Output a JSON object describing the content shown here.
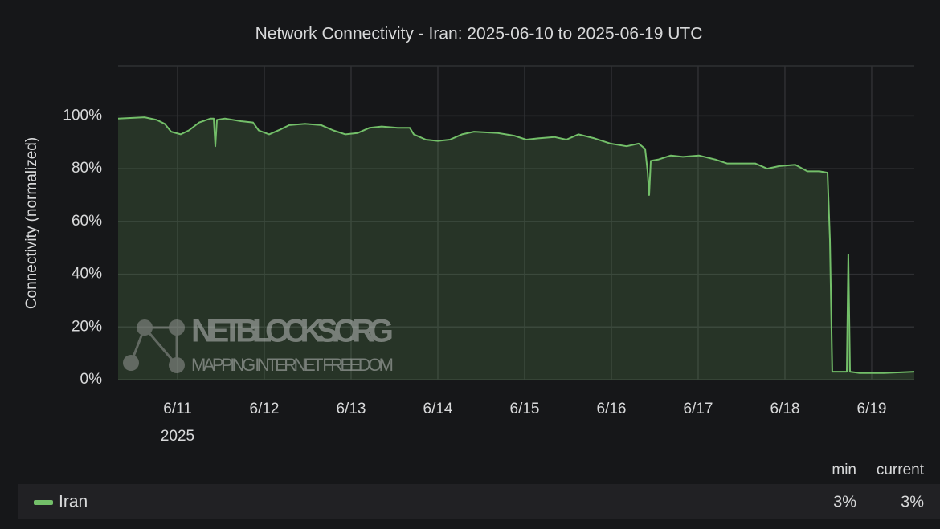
{
  "chart_data": {
    "type": "area",
    "title": "Network Connectivity - Iran: 2025-06-10 to 2025-06-19 UTC",
    "y_label": "Connectivity (normalized)",
    "x_sublabel": "2025",
    "watermark": {
      "text": "NETBLOCKS.ORG",
      "subtext": "MAPPING INTERNET FREEDOM"
    },
    "grid": true,
    "xlim": [
      10.315,
      19.491
    ],
    "xticks": [
      {
        "value": 11,
        "label": "6/11"
      },
      {
        "value": 12,
        "label": "6/12"
      },
      {
        "value": 13,
        "label": "6/13"
      },
      {
        "value": 14,
        "label": "6/14"
      },
      {
        "value": 15,
        "label": "6/15"
      },
      {
        "value": 16,
        "label": "6/16"
      },
      {
        "value": 17,
        "label": "6/17"
      },
      {
        "value": 18,
        "label": "6/18"
      },
      {
        "value": 19,
        "label": "6/19"
      }
    ],
    "ylim": [
      0,
      119
    ],
    "yticks": [
      {
        "value": 0,
        "label": "0%"
      },
      {
        "value": 20,
        "label": "20%"
      },
      {
        "value": 40,
        "label": "40%"
      },
      {
        "value": 60,
        "label": "60%"
      },
      {
        "value": 80,
        "label": "80%"
      },
      {
        "value": 100,
        "label": "100%"
      }
    ],
    "x": [
      10.315,
      10.62,
      10.759,
      10.852,
      10.926,
      11.037,
      11.13,
      11.25,
      11.38,
      11.417,
      11.435,
      11.454,
      11.546,
      11.731,
      11.87,
      11.935,
      12.056,
      12.194,
      12.287,
      12.472,
      12.657,
      12.796,
      12.935,
      13.074,
      13.213,
      13.352,
      13.537,
      13.676,
      13.722,
      13.861,
      14.0,
      14.139,
      14.278,
      14.417,
      14.694,
      14.88,
      15.019,
      15.157,
      15.343,
      15.481,
      15.62,
      15.806,
      15.991,
      16.176,
      16.315,
      16.389,
      16.417,
      16.435,
      16.454,
      16.546,
      16.685,
      16.824,
      17.009,
      17.194,
      17.333,
      17.472,
      17.657,
      17.796,
      17.935,
      18.12,
      18.259,
      18.398,
      18.491,
      18.519,
      18.546,
      18.676,
      18.713,
      18.731,
      18.75,
      18.861,
      19.139,
      19.491
    ],
    "series": [
      {
        "name": "Iran",
        "color": "#73bf69",
        "values": [
          99,
          99.5,
          98.5,
          97,
          94,
          93,
          94.5,
          97.5,
          99,
          99,
          88.5,
          98.5,
          99,
          98,
          97.5,
          94.5,
          93,
          95,
          96.5,
          97,
          96.5,
          94.5,
          93,
          93.5,
          95.5,
          96,
          95.5,
          95.5,
          93,
          91,
          90.5,
          91,
          93,
          94,
          93.5,
          92.5,
          91,
          91.5,
          92,
          91,
          93,
          91.5,
          89.5,
          88.5,
          89.5,
          87.5,
          79,
          70,
          83,
          83.5,
          85,
          84.5,
          85,
          83.5,
          82,
          82,
          82,
          80,
          81,
          81.5,
          79,
          79,
          78.5,
          53,
          3,
          3,
          3,
          47.5,
          3,
          2.5,
          2.5,
          3
        ],
        "stats": [
          {
            "name": "min",
            "value": 3,
            "label": "3%"
          },
          {
            "name": "current",
            "value": 3,
            "label": "3%"
          }
        ]
      }
    ]
  }
}
